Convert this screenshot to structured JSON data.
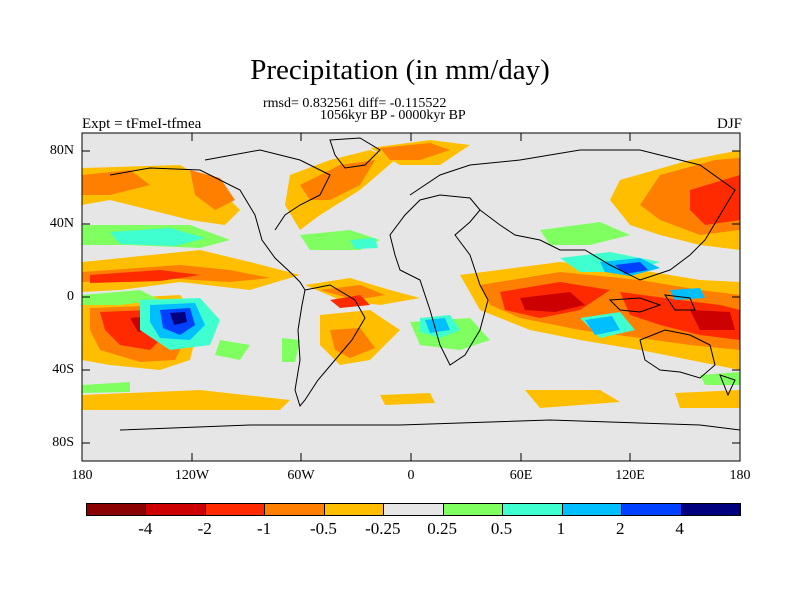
{
  "title": "Precipitation (in mm/day)",
  "stats_line": "rmsd= 0.832561 diff= -0.115522",
  "period_line": "1056kyr BP - 0000kyr BP",
  "experiment_label": "Expt = tFmeI-tfmea",
  "season_label": "DJF",
  "latitude_ticks": [
    "80N",
    "40N",
    "0",
    "40S",
    "80S"
  ],
  "longitude_ticks": [
    "180",
    "120W",
    "60W",
    "0",
    "60E",
    "120E",
    "180"
  ],
  "colorbar": {
    "labels": [
      "-4",
      "-2",
      "-1",
      "-0.5",
      "-0.25",
      "0.25",
      "0.5",
      "1",
      "2",
      "4"
    ],
    "colors": [
      "#8b0000",
      "#cc0000",
      "#ff2a00",
      "#ff7f00",
      "#ffbf00",
      "#e6e6e6",
      "#7fff60",
      "#3fffd0",
      "#00bfff",
      "#0040ff",
      "#00007f"
    ]
  }
}
